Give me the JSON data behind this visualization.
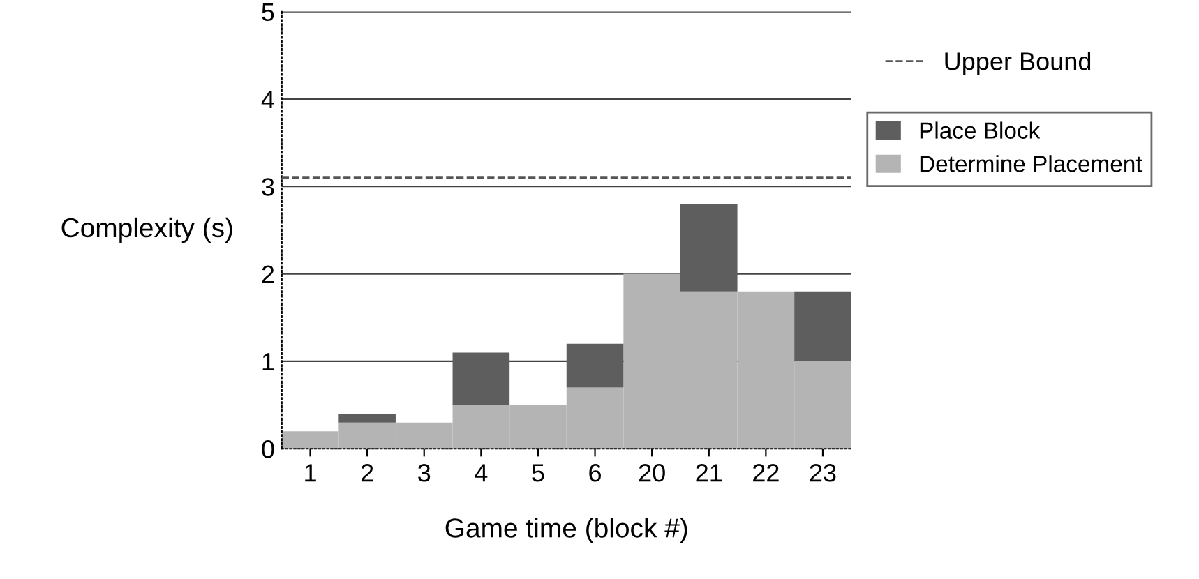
{
  "chart_data": {
    "type": "bar",
    "xlabel": "Game time (block #)",
    "ylabel": "Complexity (s)",
    "categories": [
      "1",
      "2",
      "3",
      "4",
      "5",
      "6",
      "20",
      "21",
      "22",
      "23"
    ],
    "stacked": true,
    "series": [
      {
        "name": "Determine Placement",
        "color": "#b4b4b4",
        "values": [
          0.2,
          0.3,
          0.3,
          0.5,
          0.5,
          0.7,
          2.0,
          1.8,
          1.8,
          1.0
        ]
      },
      {
        "name": "Place Block",
        "color": "#5e5e5e",
        "values": [
          0,
          0.1,
          0,
          0.6,
          0,
          0.5,
          0,
          1.0,
          0,
          0.8
        ]
      }
    ],
    "ylim": [
      0,
      5
    ],
    "yticks": [
      0,
      1,
      2,
      3,
      4,
      5
    ],
    "grid": "y",
    "legend": "right",
    "ref_lines": [
      {
        "axis": "y",
        "value": 3.1,
        "label": "Upper Bound",
        "color": "#555555",
        "line_style": "dashed"
      }
    ]
  }
}
